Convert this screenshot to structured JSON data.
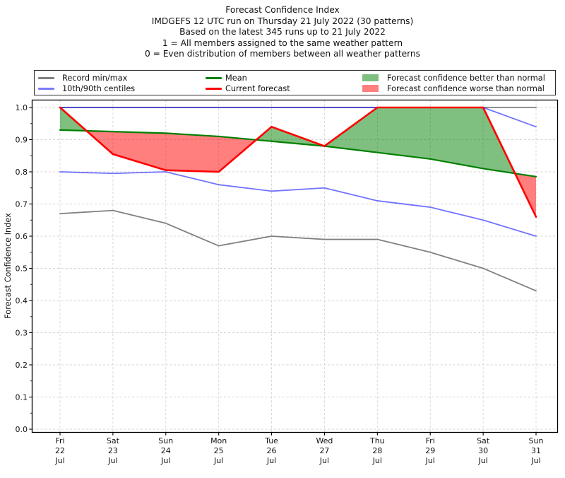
{
  "header": {
    "lines": [
      "Forecast Confidence Index",
      "IMDGEFS 12 UTC run on Thursday 21 July 2022 (30 patterns)",
      "Based on the latest 345 runs up to 21 July 2022",
      "1 = All members assigned to the same weather pattern",
      "0 = Even distribution of members between all weather patterns"
    ]
  },
  "legend": {
    "record": "Record min/max",
    "centiles": "10th/90th centiles",
    "mean": "Mean",
    "current": "Current forecast",
    "better": "Forecast confidence better than normal",
    "worse": "Forecast confidence worse than normal"
  },
  "colors": {
    "record": "#808080",
    "centiles": "#7b7bf8",
    "centiles_base": "#0000ff",
    "mean": "#008000",
    "current": "#ff0000",
    "better_fill": "#7fbf7f",
    "worse_fill": "#ff7f7f",
    "grid": "#d4d4d4",
    "frame": "#000000",
    "tick_text": "#111111"
  },
  "chart_data": {
    "type": "line",
    "title": "Forecast Confidence Index",
    "subtitle": [
      "IMDGEFS 12 UTC run on Thursday 21 July 2022 (30 patterns)",
      "Based on the latest 345 runs up to 21 July 2022",
      "1 = All members assigned to the same weather pattern",
      "0 = Even distribution of members between all weather patterns"
    ],
    "ylabel": "Forecast Confidence Index",
    "xlabel": "",
    "ylim": [
      0.0,
      1.0
    ],
    "yticks": [
      0.0,
      0.1,
      0.2,
      0.3,
      0.4,
      0.5,
      0.6,
      0.7,
      0.8,
      0.9,
      1.0
    ],
    "grid": true,
    "legend_position": "top",
    "x_labels": [
      {
        "dow": "Fri",
        "day": "22",
        "mon": "Jul"
      },
      {
        "dow": "Sat",
        "day": "23",
        "mon": "Jul"
      },
      {
        "dow": "Sun",
        "day": "24",
        "mon": "Jul"
      },
      {
        "dow": "Mon",
        "day": "25",
        "mon": "Jul"
      },
      {
        "dow": "Tue",
        "day": "26",
        "mon": "Jul"
      },
      {
        "dow": "Wed",
        "day": "27",
        "mon": "Jul"
      },
      {
        "dow": "Thu",
        "day": "28",
        "mon": "Jul"
      },
      {
        "dow": "Fri",
        "day": "29",
        "mon": "Jul"
      },
      {
        "dow": "Sat",
        "day": "30",
        "mon": "Jul"
      },
      {
        "dow": "Sun",
        "day": "31",
        "mon": "Jul"
      }
    ],
    "series": [
      {
        "name": "Record max",
        "values": [
          1.0,
          1.0,
          1.0,
          1.0,
          1.0,
          1.0,
          1.0,
          1.0,
          1.0,
          1.0
        ]
      },
      {
        "name": "Record min",
        "values": [
          0.67,
          0.68,
          0.64,
          0.57,
          0.6,
          0.59,
          0.59,
          0.55,
          0.5,
          0.43
        ]
      },
      {
        "name": "90th centile",
        "values": [
          1.0,
          1.0,
          1.0,
          1.0,
          1.0,
          1.0,
          1.0,
          1.0,
          1.0,
          0.94
        ]
      },
      {
        "name": "10th centile",
        "values": [
          0.8,
          0.795,
          0.8,
          0.76,
          0.74,
          0.75,
          0.71,
          0.69,
          0.65,
          0.6
        ]
      },
      {
        "name": "Mean",
        "values": [
          0.93,
          0.925,
          0.92,
          0.91,
          0.895,
          0.88,
          0.86,
          0.84,
          0.81,
          0.785
        ]
      },
      {
        "name": "Current forecast",
        "values": [
          1.0,
          0.855,
          0.805,
          0.8,
          0.94,
          0.88,
          1.0,
          1.0,
          1.0,
          0.66
        ]
      }
    ]
  }
}
